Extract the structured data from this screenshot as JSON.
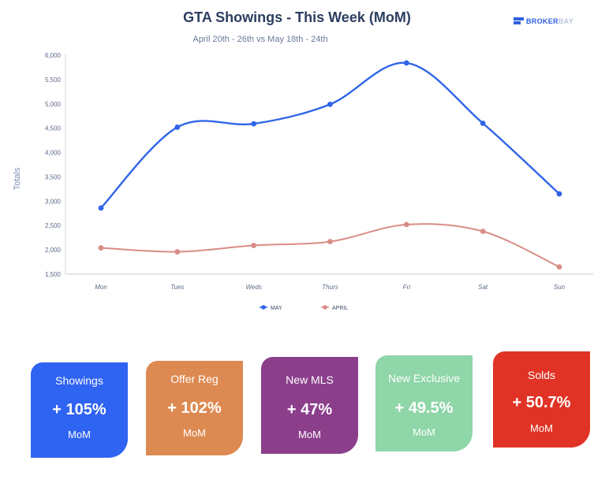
{
  "header": {
    "title": "GTA Showings - This Week (MoM)",
    "subtitle": "April 20th - 26th vs May 18th - 24th",
    "logo_text_bold": "BROKER",
    "logo_text_light": "BAY"
  },
  "chart_data": {
    "type": "line",
    "title": "GTA Showings - This Week (MoM)",
    "subtitle": "April 20th - 26th vs May 18th - 24th",
    "ylabel": "Totals",
    "xlabel": "",
    "categories": [
      "Mon",
      "Tues",
      "Weds",
      "Thurs",
      "Fri",
      "Sat",
      "Sun"
    ],
    "ylim": [
      1500,
      6000
    ],
    "yticks": [
      1500,
      2000,
      2500,
      3000,
      3500,
      4000,
      4500,
      5000,
      5500,
      6000
    ],
    "ytick_labels": [
      "1,500",
      "2,000",
      "2,500",
      "3,000",
      "3,500",
      "4,000",
      "4,500",
      "5,000",
      "5,500",
      "6,000"
    ],
    "grid": false,
    "legend_position": "bottom",
    "series": [
      {
        "name": "MAY",
        "color": "#3065e8",
        "values": [
          2860,
          4520,
          4590,
          4990,
          5840,
          4600,
          3150
        ]
      },
      {
        "name": "APRIL",
        "color": "#d98c86",
        "values": [
          2040,
          1960,
          2090,
          2170,
          2520,
          2380,
          1650
        ]
      }
    ]
  },
  "cards": [
    {
      "label": "Showings",
      "value": "+ 105%",
      "mom": "MoM",
      "color": "#2f63f2"
    },
    {
      "label": "Offer Reg",
      "value": "+ 102%",
      "mom": "MoM",
      "color": "#dd8a52"
    },
    {
      "label": "New MLS",
      "value": "+ 47%",
      "mom": "MoM",
      "color": "#8b3f8b"
    },
    {
      "label": "New Exclusive",
      "value": "+ 49.5%",
      "mom": "MoM",
      "color": "#8fd6a8"
    },
    {
      "label": "Solds",
      "value": "+ 50.7%",
      "mom": "MoM",
      "color": "#e03325"
    }
  ]
}
